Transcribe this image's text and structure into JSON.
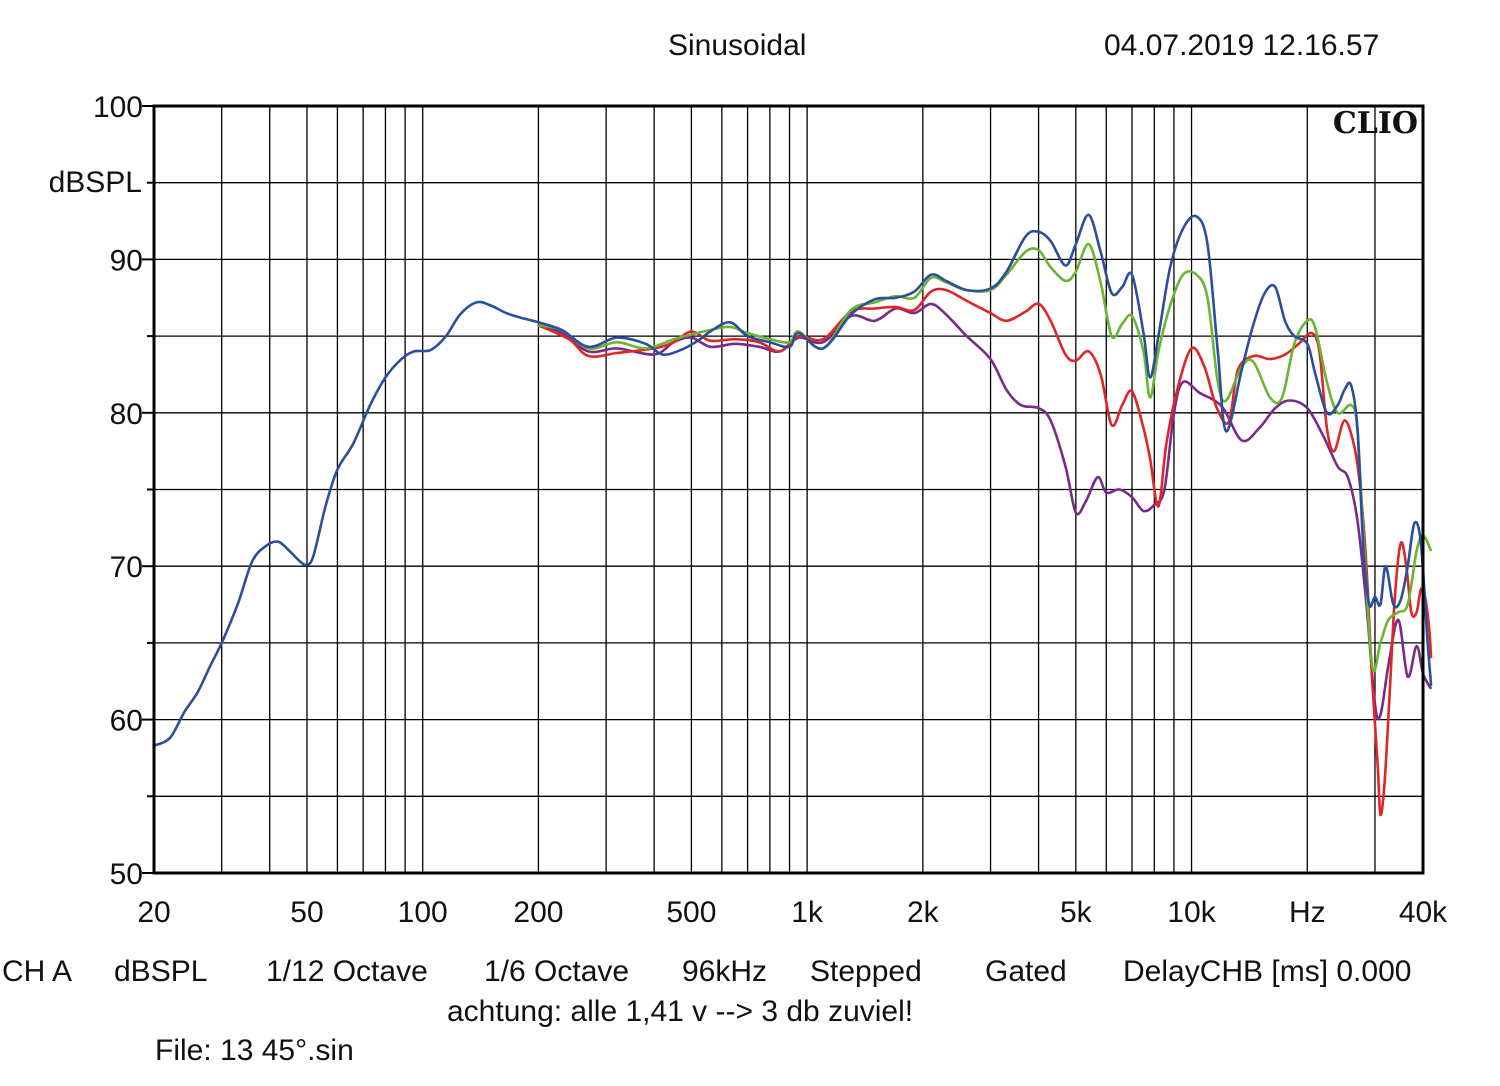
{
  "header": {
    "title": "Sinusoidal",
    "datetime": "04.07.2019 12.16.57"
  },
  "brand": "CLIO",
  "footer": {
    "settings": [
      "CH A",
      "dBSPL",
      "1/12 Octave",
      "1/6 Octave",
      "96kHz",
      "Stepped",
      "Gated",
      "DelayCHB [ms] 0.000"
    ],
    "note": "achtung: alle 1,41 v --> 3 db zuviel!",
    "file": "File: 13 45°.sin"
  },
  "chart_data": {
    "type": "line",
    "title": "Sinusoidal",
    "ylabel": "dBSPL",
    "xlabel": "Hz",
    "xscale": "log",
    "xlim": [
      20,
      40000
    ],
    "ylim": [
      50,
      100
    ],
    "grid": true,
    "yticks": [
      {
        "value": 100,
        "label": "100"
      },
      {
        "value": 90,
        "label": "90"
      },
      {
        "value": 80,
        "label": "80"
      },
      {
        "value": 70,
        "label": "70"
      },
      {
        "value": 60,
        "label": "60"
      },
      {
        "value": 50,
        "label": "50"
      }
    ],
    "xticks": [
      {
        "value": 20,
        "label": "20"
      },
      {
        "value": 50,
        "label": "50"
      },
      {
        "value": 100,
        "label": "100"
      },
      {
        "value": 200,
        "label": "200"
      },
      {
        "value": 500,
        "label": "500"
      },
      {
        "value": 1000,
        "label": "1k"
      },
      {
        "value": 2000,
        "label": "2k"
      },
      {
        "value": 5000,
        "label": "5k"
      },
      {
        "value": 10000,
        "label": "10k"
      },
      {
        "value": 20000,
        "label": "Hz"
      },
      {
        "value": 40000,
        "label": "40k"
      }
    ],
    "series": [
      {
        "color": "#7b2a8c",
        "points": [
          [
            200,
            85.7
          ],
          [
            230,
            85.2
          ],
          [
            270,
            84.0
          ],
          [
            320,
            84.2
          ],
          [
            400,
            83.8
          ],
          [
            450,
            84.6
          ],
          [
            500,
            84.9
          ],
          [
            560,
            84.3
          ],
          [
            650,
            84.5
          ],
          [
            750,
            84.3
          ],
          [
            850,
            84.0
          ],
          [
            950,
            84.9
          ],
          [
            1100,
            84.6
          ],
          [
            1300,
            86.3
          ],
          [
            1500,
            86.0
          ],
          [
            1700,
            86.8
          ],
          [
            1900,
            86.5
          ],
          [
            2100,
            87.1
          ],
          [
            2300,
            86.4
          ],
          [
            2600,
            85.0
          ],
          [
            3000,
            83.5
          ],
          [
            3300,
            81.5
          ],
          [
            3600,
            80.5
          ],
          [
            4000,
            80.3
          ],
          [
            4300,
            79.5
          ],
          [
            4700,
            76.5
          ],
          [
            5000,
            73.5
          ],
          [
            5300,
            74.2
          ],
          [
            5700,
            75.8
          ],
          [
            6000,
            74.8
          ],
          [
            6500,
            75.0
          ],
          [
            7000,
            74.5
          ],
          [
            7500,
            73.6
          ],
          [
            8000,
            74.0
          ],
          [
            8500,
            75.0
          ],
          [
            9000,
            80.0
          ],
          [
            9500,
            82.0
          ],
          [
            10500,
            81.3
          ],
          [
            12000,
            80.4
          ],
          [
            13500,
            78.2
          ],
          [
            15000,
            79.0
          ],
          [
            16500,
            80.3
          ],
          [
            18000,
            80.8
          ],
          [
            20000,
            80.3
          ],
          [
            22000,
            78.5
          ],
          [
            24000,
            76.5
          ],
          [
            25500,
            75.8
          ],
          [
            27000,
            73.0
          ],
          [
            28500,
            67.5
          ],
          [
            30000,
            61.0
          ],
          [
            31000,
            60.3
          ],
          [
            32500,
            63.5
          ],
          [
            34500,
            66.5
          ],
          [
            36500,
            62.8
          ],
          [
            38500,
            64.8
          ],
          [
            40000,
            63.0
          ],
          [
            42000,
            62.0
          ]
        ]
      },
      {
        "color": "#e02626",
        "points": [
          [
            200,
            85.7
          ],
          [
            240,
            84.8
          ],
          [
            270,
            83.7
          ],
          [
            320,
            83.9
          ],
          [
            400,
            84.2
          ],
          [
            450,
            84.6
          ],
          [
            500,
            85.3
          ],
          [
            560,
            84.7
          ],
          [
            650,
            84.8
          ],
          [
            750,
            84.6
          ],
          [
            850,
            84.0
          ],
          [
            950,
            85.0
          ],
          [
            1100,
            84.8
          ],
          [
            1300,
            86.6
          ],
          [
            1500,
            86.8
          ],
          [
            1700,
            86.9
          ],
          [
            1900,
            86.7
          ],
          [
            2100,
            87.9
          ],
          [
            2300,
            88.0
          ],
          [
            2600,
            87.3
          ],
          [
            3000,
            86.5
          ],
          [
            3300,
            86.0
          ],
          [
            3700,
            86.6
          ],
          [
            4000,
            87.1
          ],
          [
            4300,
            86.0
          ],
          [
            4700,
            83.8
          ],
          [
            5000,
            83.4
          ],
          [
            5400,
            84.0
          ],
          [
            5800,
            82.5
          ],
          [
            6200,
            79.2
          ],
          [
            6600,
            80.5
          ],
          [
            7000,
            81.4
          ],
          [
            7500,
            79.0
          ],
          [
            7800,
            77.0
          ],
          [
            8200,
            73.9
          ],
          [
            8600,
            78.0
          ],
          [
            9200,
            81.6
          ],
          [
            10000,
            84.2
          ],
          [
            10800,
            83.0
          ],
          [
            11600,
            80.4
          ],
          [
            12500,
            79.4
          ],
          [
            13200,
            82.8
          ],
          [
            14500,
            83.7
          ],
          [
            16000,
            83.5
          ],
          [
            17500,
            83.8
          ],
          [
            19000,
            84.5
          ],
          [
            20500,
            85.2
          ],
          [
            21500,
            84.0
          ],
          [
            22500,
            79.0
          ],
          [
            23500,
            77.5
          ],
          [
            25000,
            79.5
          ],
          [
            26500,
            77.8
          ],
          [
            27500,
            75.0
          ],
          [
            28500,
            70.0
          ],
          [
            29500,
            62.5
          ],
          [
            30500,
            57.0
          ],
          [
            31000,
            53.8
          ],
          [
            31800,
            56.0
          ],
          [
            32800,
            62.0
          ],
          [
            33800,
            68.0
          ],
          [
            35000,
            71.5
          ],
          [
            36200,
            70.0
          ],
          [
            37300,
            67.0
          ],
          [
            38500,
            67.0
          ],
          [
            39500,
            68.5
          ],
          [
            40500,
            68.0
          ],
          [
            41500,
            66.0
          ],
          [
            42000,
            64.0
          ]
        ]
      },
      {
        "color": "#6ab531",
        "points": [
          [
            200,
            85.7
          ],
          [
            230,
            85.4
          ],
          [
            270,
            84.2
          ],
          [
            320,
            84.6
          ],
          [
            380,
            84.2
          ],
          [
            450,
            84.8
          ],
          [
            500,
            85.1
          ],
          [
            560,
            85.4
          ],
          [
            630,
            85.6
          ],
          [
            700,
            85.2
          ],
          [
            800,
            84.8
          ],
          [
            900,
            84.6
          ],
          [
            950,
            85.3
          ],
          [
            1100,
            84.2
          ],
          [
            1300,
            86.7
          ],
          [
            1500,
            87.2
          ],
          [
            1700,
            87.6
          ],
          [
            1900,
            87.5
          ],
          [
            2100,
            88.8
          ],
          [
            2300,
            88.5
          ],
          [
            2600,
            88.0
          ],
          [
            3000,
            88.0
          ],
          [
            3300,
            89.0
          ],
          [
            3700,
            90.5
          ],
          [
            4000,
            90.6
          ],
          [
            4300,
            89.5
          ],
          [
            4700,
            88.6
          ],
          [
            5000,
            89.2
          ],
          [
            5400,
            91.0
          ],
          [
            5800,
            88.5
          ],
          [
            6200,
            85.0
          ],
          [
            6600,
            85.8
          ],
          [
            7000,
            86.3
          ],
          [
            7500,
            84.0
          ],
          [
            7800,
            81.0
          ],
          [
            8200,
            84.0
          ],
          [
            8800,
            87.0
          ],
          [
            9500,
            89.0
          ],
          [
            10300,
            89.0
          ],
          [
            11000,
            87.5
          ],
          [
            11700,
            82.0
          ],
          [
            12300,
            80.8
          ],
          [
            13500,
            83.0
          ],
          [
            14500,
            83.3
          ],
          [
            16000,
            81.0
          ],
          [
            17200,
            81.0
          ],
          [
            18500,
            84.5
          ],
          [
            20000,
            86.0
          ],
          [
            21000,
            85.5
          ],
          [
            22500,
            82.0
          ],
          [
            24000,
            80.0
          ],
          [
            26000,
            80.5
          ],
          [
            27000,
            79.0
          ],
          [
            28000,
            72.0
          ],
          [
            29500,
            63.5
          ],
          [
            31000,
            65.0
          ],
          [
            32500,
            66.5
          ],
          [
            34500,
            67.0
          ],
          [
            36500,
            67.5
          ],
          [
            38500,
            71.0
          ],
          [
            40000,
            72.0
          ],
          [
            42000,
            71.0
          ]
        ]
      },
      {
        "color": "#2a4f9c",
        "points": [
          [
            20,
            58.3
          ],
          [
            22,
            58.8
          ],
          [
            24,
            60.5
          ],
          [
            26,
            61.8
          ],
          [
            28,
            63.5
          ],
          [
            30,
            65.0
          ],
          [
            33,
            67.5
          ],
          [
            36,
            70.3
          ],
          [
            39,
            71.3
          ],
          [
            42,
            71.6
          ],
          [
            45,
            71.0
          ],
          [
            48,
            70.3
          ],
          [
            50,
            70.1
          ],
          [
            52,
            70.7
          ],
          [
            56,
            74.0
          ],
          [
            60,
            76.3
          ],
          [
            66,
            78.0
          ],
          [
            73,
            80.5
          ],
          [
            80,
            82.3
          ],
          [
            88,
            83.5
          ],
          [
            95,
            84.0
          ],
          [
            105,
            84.1
          ],
          [
            115,
            85.0
          ],
          [
            125,
            86.4
          ],
          [
            138,
            87.2
          ],
          [
            150,
            87.0
          ],
          [
            165,
            86.5
          ],
          [
            180,
            86.2
          ],
          [
            200,
            85.9
          ],
          [
            230,
            85.4
          ],
          [
            270,
            84.3
          ],
          [
            320,
            84.9
          ],
          [
            380,
            84.5
          ],
          [
            420,
            83.8
          ],
          [
            470,
            84.1
          ],
          [
            520,
            84.7
          ],
          [
            560,
            85.3
          ],
          [
            630,
            85.9
          ],
          [
            700,
            85.0
          ],
          [
            800,
            84.6
          ],
          [
            900,
            84.3
          ],
          [
            950,
            85.2
          ],
          [
            1100,
            84.2
          ],
          [
            1300,
            86.4
          ],
          [
            1500,
            87.4
          ],
          [
            1700,
            87.5
          ],
          [
            1900,
            87.9
          ],
          [
            2100,
            89.0
          ],
          [
            2300,
            88.6
          ],
          [
            2600,
            88.0
          ],
          [
            3000,
            88.1
          ],
          [
            3300,
            89.2
          ],
          [
            3700,
            91.5
          ],
          [
            4000,
            91.8
          ],
          [
            4300,
            91.2
          ],
          [
            4700,
            89.6
          ],
          [
            5000,
            91.0
          ],
          [
            5400,
            92.9
          ],
          [
            5800,
            90.5
          ],
          [
            6200,
            87.8
          ],
          [
            6600,
            88.2
          ],
          [
            7000,
            89.0
          ],
          [
            7500,
            85.2
          ],
          [
            7800,
            82.3
          ],
          [
            8200,
            85.0
          ],
          [
            8800,
            89.5
          ],
          [
            9500,
            92.0
          ],
          [
            10300,
            92.8
          ],
          [
            11000,
            91.0
          ],
          [
            11700,
            84.0
          ],
          [
            12300,
            78.8
          ],
          [
            13500,
            82.8
          ],
          [
            14500,
            85.8
          ],
          [
            15500,
            87.8
          ],
          [
            16500,
            88.2
          ],
          [
            17500,
            86.0
          ],
          [
            18500,
            85.0
          ],
          [
            20000,
            84.5
          ],
          [
            21000,
            82.5
          ],
          [
            22500,
            80.0
          ],
          [
            24000,
            80.5
          ],
          [
            25000,
            81.5
          ],
          [
            26000,
            81.8
          ],
          [
            27000,
            79.0
          ],
          [
            28000,
            71.0
          ],
          [
            29000,
            67.5
          ],
          [
            30000,
            68.0
          ],
          [
            31000,
            67.5
          ],
          [
            32000,
            70.0
          ],
          [
            33500,
            67.5
          ],
          [
            35000,
            67.8
          ],
          [
            36500,
            70.0
          ],
          [
            38000,
            72.8
          ],
          [
            39500,
            71.5
          ],
          [
            41000,
            65.5
          ],
          [
            42000,
            62.2
          ]
        ]
      }
    ]
  }
}
